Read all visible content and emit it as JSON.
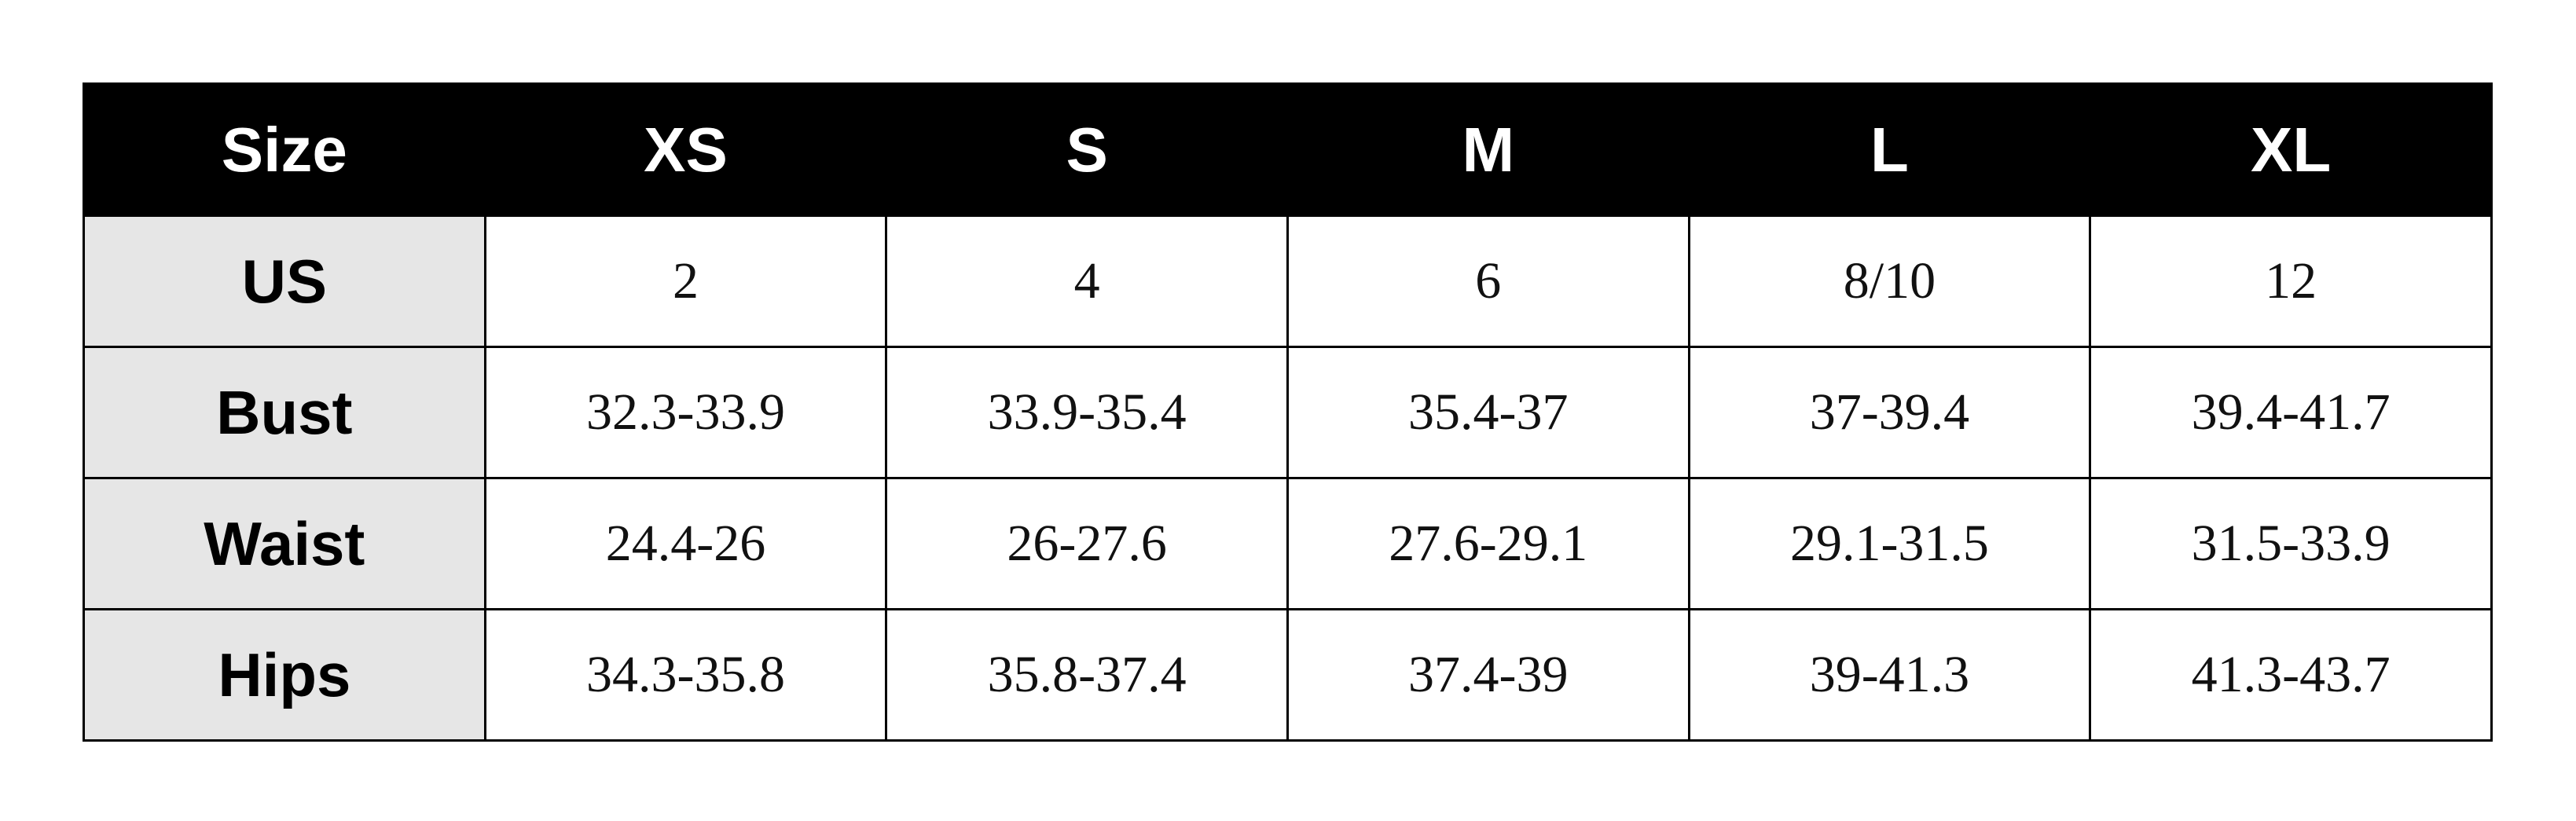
{
  "table": {
    "header": [
      "Size",
      "XS",
      "S",
      "M",
      "L",
      "XL"
    ],
    "rows": [
      {
        "label": "US",
        "values": [
          "2",
          "4",
          "6",
          "8/10",
          "12"
        ]
      },
      {
        "label": "Bust",
        "values": [
          "32.3-33.9",
          "33.9-35.4",
          "35.4-37",
          "37-39.4",
          "39.4-41.7"
        ]
      },
      {
        "label": "Waist",
        "values": [
          "24.4-26",
          "26-27.6",
          "27.6-29.1",
          "29.1-31.5",
          "31.5-33.9"
        ]
      },
      {
        "label": "Hips",
        "values": [
          "34.3-35.8",
          "35.8-37.4",
          "37.4-39",
          "39-41.3",
          "41.3-43.7"
        ]
      }
    ]
  },
  "colors": {
    "header_bg": "#000000",
    "label_bg": "#e6e6e6"
  }
}
